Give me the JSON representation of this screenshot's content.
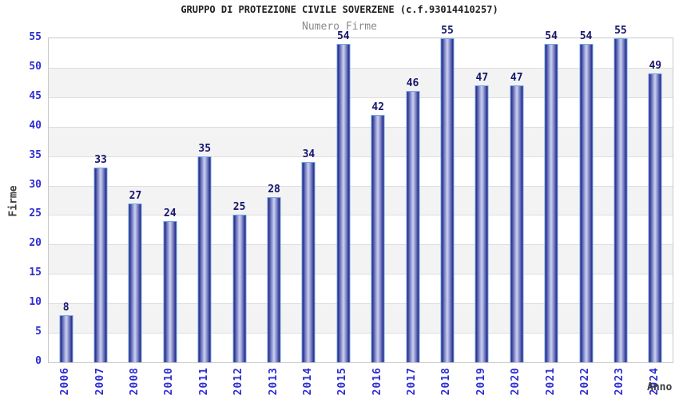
{
  "chart_data": {
    "type": "bar",
    "title": "GRUPPO DI PROTEZIONE CIVILE SOVERZENE (c.f.93014410257)",
    "subtitle": "Numero Firme",
    "xlabel": "Anno",
    "ylabel": "Firme",
    "categories": [
      "2006",
      "2007",
      "2008",
      "2010",
      "2011",
      "2012",
      "2013",
      "2014",
      "2015",
      "2016",
      "2017",
      "2018",
      "2019",
      "2020",
      "2021",
      "2022",
      "2023",
      "2024"
    ],
    "values": [
      8,
      33,
      27,
      24,
      35,
      25,
      28,
      34,
      54,
      42,
      46,
      55,
      47,
      47,
      54,
      54,
      55,
      49
    ],
    "ylim": [
      0,
      55
    ],
    "ytick_step": 5,
    "legend_position": "none",
    "grid": "horizontal-bands-alternating",
    "bar_value_labels_shown": true,
    "colors": {
      "title": "#202020",
      "subtitle": "#8a8a8a",
      "axis_label_blue": "#2d2dd2",
      "value_label": "#16166e",
      "axis_title": "#3c3c3c",
      "bar_dark": "#1d1d7e",
      "bar_mid": "#8d96d2",
      "bar_highlight": "#ccd2ef",
      "bar_border": "#6fa9ea",
      "band_gray": "#f3f3f3",
      "gridline": "#dedede",
      "plot_border": "#c9c9c9"
    }
  }
}
